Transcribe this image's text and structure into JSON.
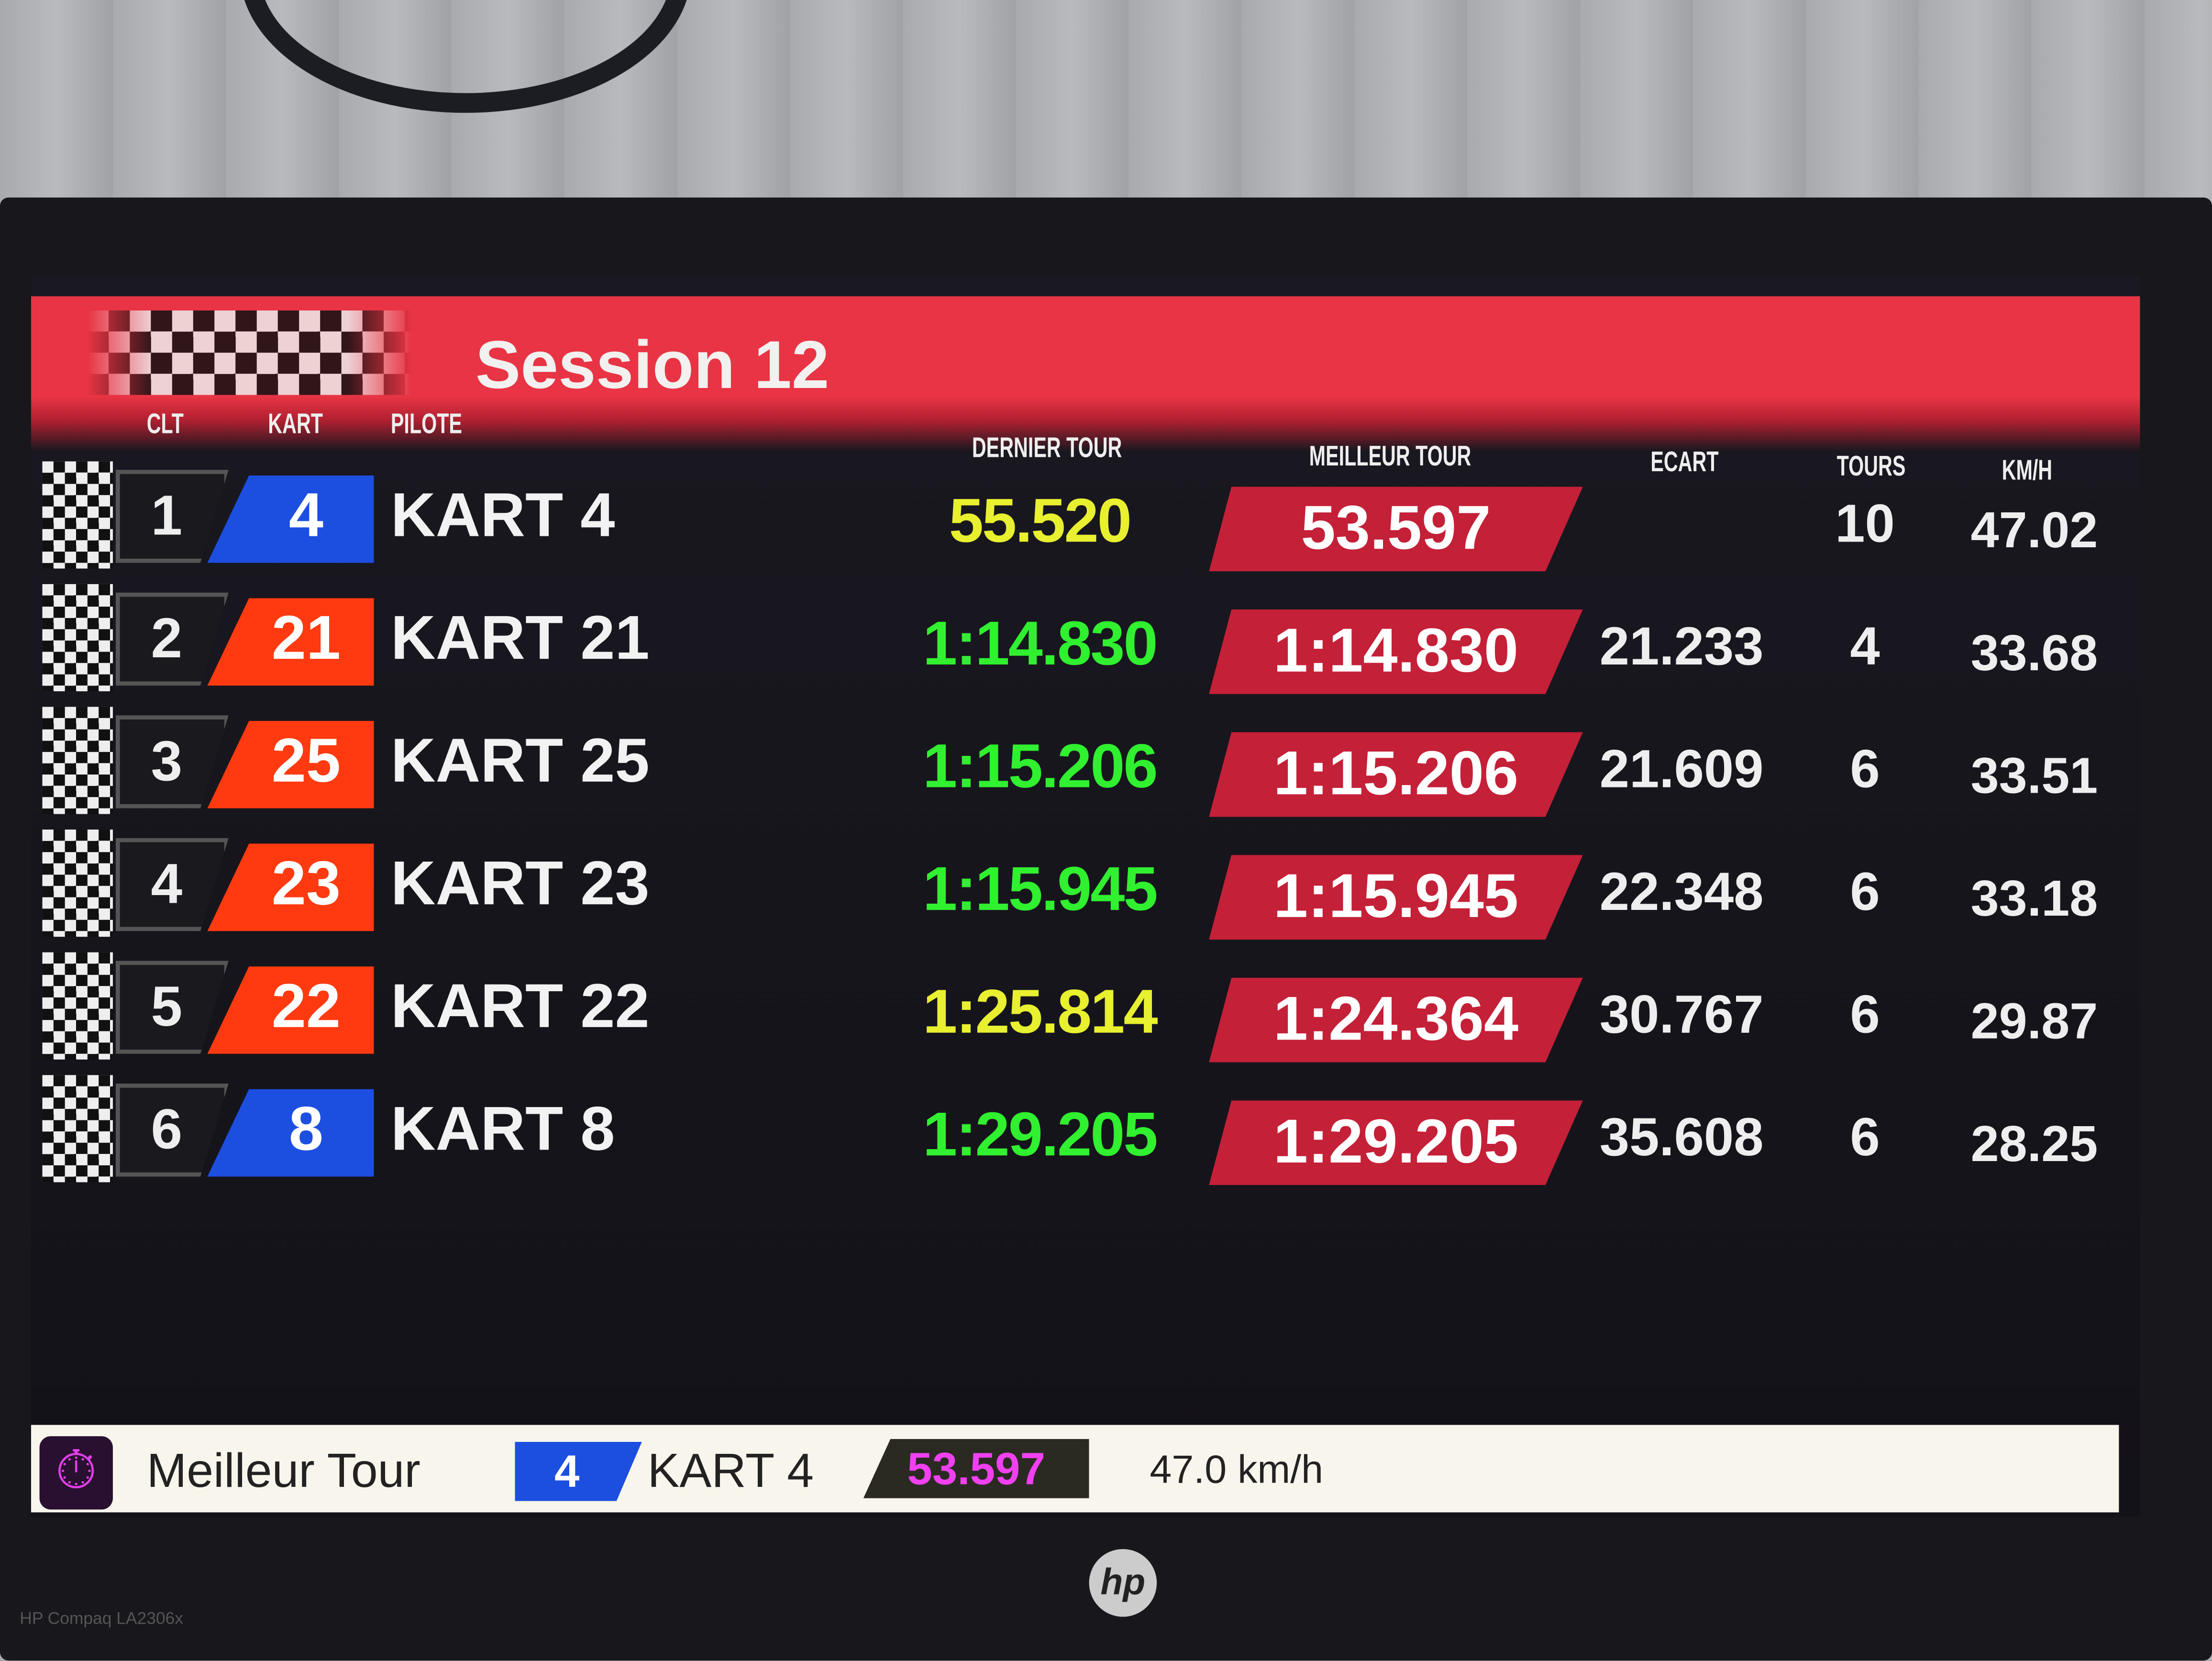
{
  "session_title": "Session 12",
  "columns": {
    "clt": "CLT",
    "kart": "KART",
    "pilote": "PILOTE",
    "dernier_tour": "DERNIER TOUR",
    "meilleur_tour": "MEILLEUR TOUR",
    "ecart": "ECART",
    "tours": "TOURS",
    "kmh": "KM/H"
  },
  "colors": {
    "header": "#e83444",
    "best_box": "#c42038",
    "kart_blue": "#1c4fe0",
    "kart_orange": "#ff3a10",
    "last_yellow": "#e8f030",
    "last_green": "#30f030",
    "footer_best": "#f040f0"
  },
  "rows": [
    {
      "pos": "1",
      "kart": "4",
      "kart_color": "#1c4fe0",
      "pilot": "KART 4",
      "last": "55.520",
      "last_color": "#e8f030",
      "best": "53.597",
      "gap": "",
      "laps": "10",
      "kmh": "47.02"
    },
    {
      "pos": "2",
      "kart": "21",
      "kart_color": "#ff3a10",
      "pilot": "KART 21",
      "last": "1:14.830",
      "last_color": "#30f030",
      "best": "1:14.830",
      "gap": "21.233",
      "laps": "4",
      "kmh": "33.68"
    },
    {
      "pos": "3",
      "kart": "25",
      "kart_color": "#ff3a10",
      "pilot": "KART 25",
      "last": "1:15.206",
      "last_color": "#30f030",
      "best": "1:15.206",
      "gap": "21.609",
      "laps": "6",
      "kmh": "33.51"
    },
    {
      "pos": "4",
      "kart": "23",
      "kart_color": "#ff3a10",
      "pilot": "KART 23",
      "last": "1:15.945",
      "last_color": "#30f030",
      "best": "1:15.945",
      "gap": "22.348",
      "laps": "6",
      "kmh": "33.18"
    },
    {
      "pos": "5",
      "kart": "22",
      "kart_color": "#ff3a10",
      "pilot": "KART 22",
      "last": "1:25.814",
      "last_color": "#e8f030",
      "best": "1:24.364",
      "gap": "30.767",
      "laps": "6",
      "kmh": "29.87"
    },
    {
      "pos": "6",
      "kart": "8",
      "kart_color": "#1c4fe0",
      "pilot": "KART 8",
      "last": "1:29.205",
      "last_color": "#30f030",
      "best": "1:29.205",
      "gap": "35.608",
      "laps": "6",
      "kmh": "28.25"
    }
  ],
  "footer": {
    "icon": "stopwatch-icon",
    "label": "Meilleur Tour",
    "kart": "4",
    "pilot": "KART 4",
    "time": "53.597",
    "speed": "47.0 km/h"
  },
  "monitor": {
    "brand": "hp",
    "model": "HP Compaq LA2306x"
  }
}
